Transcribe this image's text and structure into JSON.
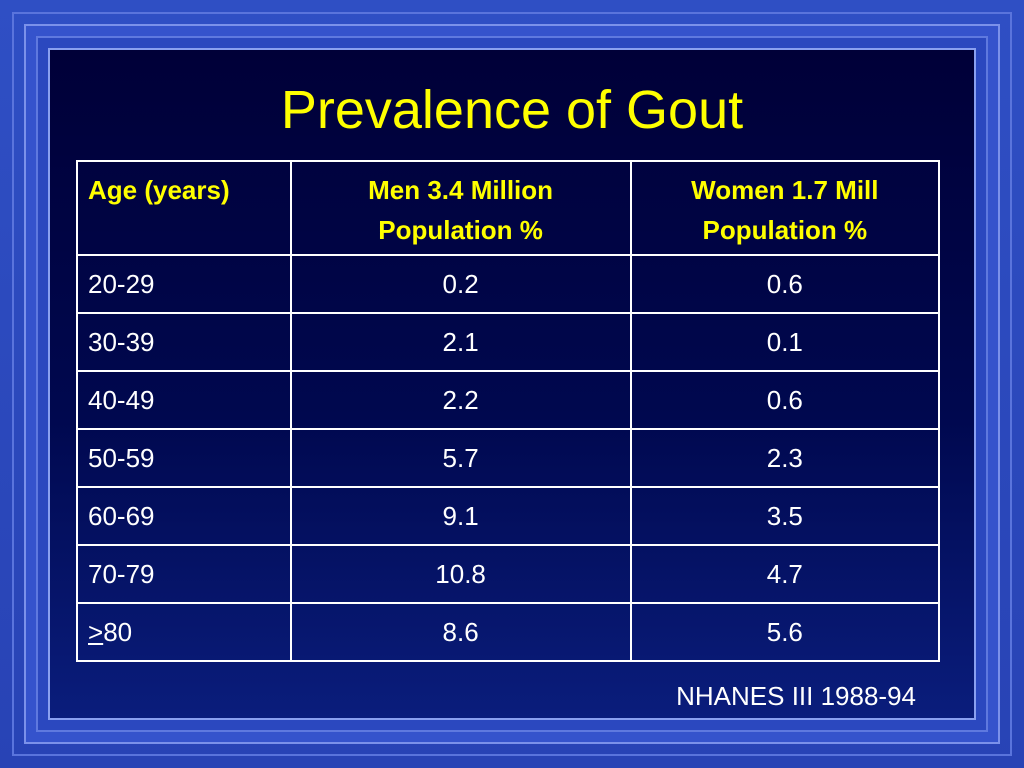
{
  "slide": {
    "title": "Prevalence of Gout",
    "source": "NHANES III 1988-94"
  },
  "table": {
    "headers": [
      "Age (years)",
      "Men 3.4 Million Population %",
      "Women 1.7 Mill Population %"
    ],
    "rows": [
      {
        "age_prefix": "",
        "age": "20-29",
        "men": "0.2",
        "women": "0.6"
      },
      {
        "age_prefix": "",
        "age": "30-39",
        "men": "2.1",
        "women": "0.1"
      },
      {
        "age_prefix": "",
        "age": "40-49",
        "men": "2.2",
        "women": "0.6"
      },
      {
        "age_prefix": "",
        "age": "50-59",
        "men": "5.7",
        "women": "2.3"
      },
      {
        "age_prefix": "",
        "age": "60-69",
        "men": "9.1",
        "women": "3.5"
      },
      {
        "age_prefix": "",
        "age": "70-79",
        "men": "10.8",
        "women": "4.7"
      },
      {
        "age_prefix": ">",
        "age": "80",
        "men": "8.6",
        "women": "5.6"
      }
    ]
  },
  "colors": {
    "title": "#ffff00",
    "header_text": "#ffff00",
    "body_text": "#ffffff",
    "background_top": "#000038",
    "frame": "#2f4fc4"
  }
}
